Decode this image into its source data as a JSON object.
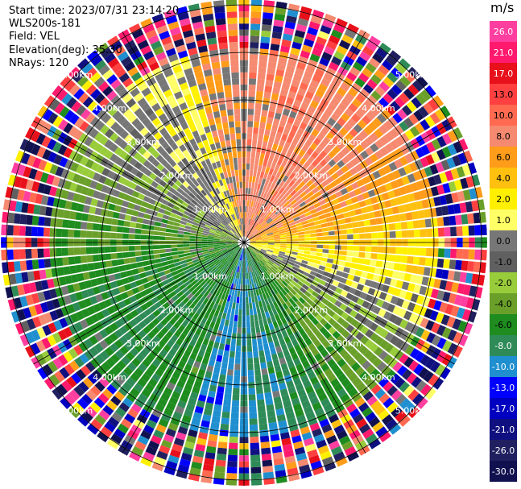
{
  "header": {
    "start_time": "Start time: 2023/07/31 23:14:20",
    "instrument": "WLS200s-181",
    "field": "Field: VEL",
    "elevation": "Elevation(deg): 35.30",
    "nrays": "NRays: 120"
  },
  "chart_data": {
    "type": "heatmap",
    "projection": "polar-ppi",
    "field": "VEL",
    "units": "m/s",
    "elevation_deg": 35.3,
    "n_rays": 120,
    "range_ring_labels": [
      "1.00km",
      "2.00km",
      "3.00km",
      "4.00km",
      "5.00km"
    ],
    "pattern": "velocity roughly positive (toward/away) in northern and eastern sectors (2 to 17 m/s), negative in southern and western sectors (-2 to -10 m/s); noisy/aliased values beyond ~4km",
    "colorbar": {
      "ticks": [
        "26.0",
        "21.0",
        "17.0",
        "13.0",
        "10.0",
        "8.0",
        "6.0",
        "4.0",
        "2.0",
        "1.0",
        "0.0",
        "-1.0",
        "-2.0",
        "-4.0",
        "-6.0",
        "-8.0",
        "-10.0",
        "-13.0",
        "-17.0",
        "-21.0",
        "-26.0",
        "-30.0"
      ],
      "colors": [
        "#ff3fa0",
        "#ff1a6e",
        "#e8101a",
        "#ff4040",
        "#ff6a50",
        "#f58a70",
        "#ff9c1a",
        "#ffc010",
        "#fff000",
        "#ffff66",
        "#777777",
        "#606060",
        "#98cc3a",
        "#6aa02a",
        "#1e8c1e",
        "#2e8b57",
        "#1f8fd0",
        "#0000ff",
        "#0000c0",
        "#101080",
        "#202060",
        "#111150"
      ]
    }
  }
}
